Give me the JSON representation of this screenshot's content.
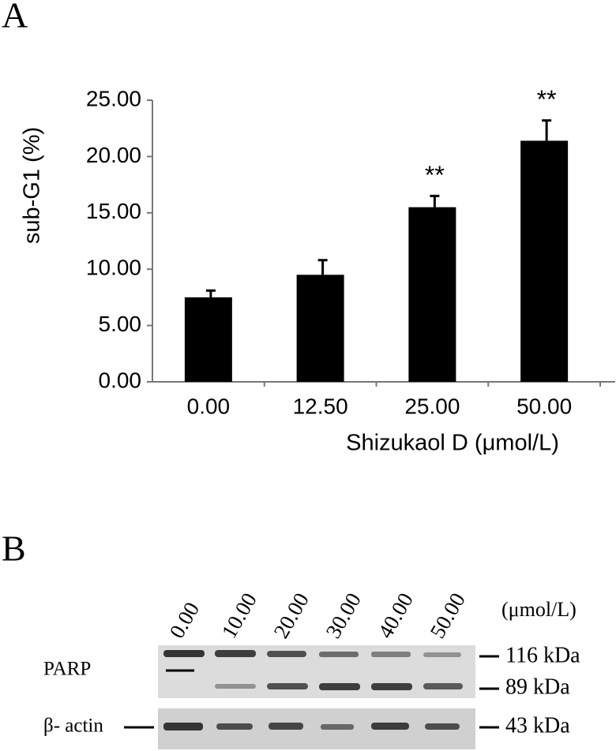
{
  "panel_labels": [
    "A",
    "B"
  ],
  "chart_data": {
    "type": "bar",
    "ylabel": "sub-G1 (%)",
    "xlabel": "Shizukaol D (μmol/L)",
    "categories": [
      "0.00",
      "12.50",
      "25.00",
      "50.00"
    ],
    "values": [
      7.5,
      9.5,
      15.5,
      21.4
    ],
    "errors": [
      0.6,
      1.3,
      1.0,
      1.8
    ],
    "significance": [
      null,
      null,
      "**",
      "**"
    ],
    "color": "#000000",
    "ylim": [
      0,
      25
    ],
    "yticks": [
      {
        "value": 0,
        "label": "0.00"
      },
      {
        "value": 5,
        "label": "5.00"
      },
      {
        "value": 10,
        "label": "10.00"
      },
      {
        "value": 15,
        "label": "15.00"
      },
      {
        "value": 20,
        "label": "20.00"
      },
      {
        "value": 25,
        "label": "25.00"
      }
    ]
  },
  "blot": {
    "lanes": [
      "0.00",
      "10.00",
      "20.00",
      "30.00",
      "40.00",
      "50.00"
    ],
    "unit": "(μmol/L)",
    "rows": [
      {
        "label": "PARP",
        "markers": [
          "116 kDa",
          "89 kDa"
        ]
      },
      {
        "label": "β- actin",
        "markers": [
          "43 kDa"
        ]
      }
    ]
  }
}
